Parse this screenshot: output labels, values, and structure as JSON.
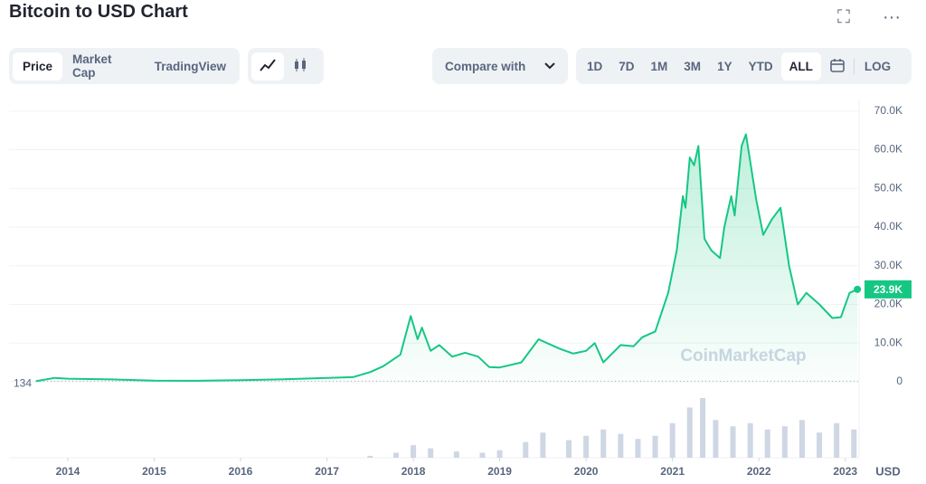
{
  "header": {
    "title": "Bitcoin to USD Chart"
  },
  "tabs": [
    "Price",
    "Market Cap",
    "TradingView"
  ],
  "compare": "Compare with",
  "ranges": [
    "1D",
    "7D",
    "1M",
    "3M",
    "1Y",
    "YTD",
    "ALL"
  ],
  "log_button": "LOG",
  "chart_data": {
    "type": "line",
    "watermark": "CoinMarketCap",
    "y_unit": "USD",
    "xlim": [
      2013.32,
      2023.16
    ],
    "xticks": [
      2014,
      2015,
      2016,
      2017,
      2018,
      2019,
      2020,
      2021,
      2022,
      2023
    ],
    "ylim": [
      0,
      73000
    ],
    "yticks": [
      0,
      {
        "value": 10000,
        "label": "10.0K"
      },
      {
        "value": 20000,
        "label": "20.0K"
      },
      {
        "value": 30000,
        "label": "30.0K"
      },
      {
        "value": 40000,
        "label": "40.0K"
      },
      {
        "value": 50000,
        "label": "50.0K"
      },
      {
        "value": 60000,
        "label": "60.0K"
      },
      {
        "value": 70000,
        "label": "70.0K"
      }
    ],
    "grid": true,
    "start_price": 134,
    "current_price": {
      "value": 23900,
      "label": "23.9K"
    },
    "series": [
      {
        "name": "Price",
        "color": "#16c784",
        "x": [
          2013.63,
          2013.85,
          2014.0,
          2014.5,
          2015.0,
          2015.5,
          2016.0,
          2016.5,
          2017.0,
          2017.3,
          2017.5,
          2017.65,
          2017.85,
          2017.97,
          2018.05,
          2018.1,
          2018.2,
          2018.3,
          2018.45,
          2018.6,
          2018.75,
          2018.88,
          2019.0,
          2019.25,
          2019.45,
          2019.55,
          2019.7,
          2019.85,
          2020.0,
          2020.1,
          2020.2,
          2020.4,
          2020.55,
          2020.65,
          2020.8,
          2020.95,
          2021.05,
          2021.12,
          2021.15,
          2021.2,
          2021.25,
          2021.3,
          2021.37,
          2021.45,
          2021.55,
          2021.6,
          2021.68,
          2021.72,
          2021.8,
          2021.85,
          2021.9,
          2021.97,
          2022.05,
          2022.15,
          2022.25,
          2022.35,
          2022.45,
          2022.55,
          2022.7,
          2022.85,
          2022.95,
          2023.05,
          2023.14
        ],
        "values": [
          134,
          1000,
          800,
          600,
          300,
          250,
          430,
          650,
          1000,
          1200,
          2500,
          4000,
          7000,
          17000,
          11000,
          14000,
          8000,
          9500,
          6500,
          7500,
          6500,
          3800,
          3700,
          5000,
          11000,
          10000,
          8500,
          7300,
          8000,
          10000,
          5000,
          9500,
          9200,
          11500,
          13000,
          23000,
          34000,
          48000,
          45000,
          58000,
          56000,
          61000,
          37000,
          34000,
          32000,
          40000,
          48000,
          43000,
          61000,
          64000,
          57000,
          47000,
          38000,
          42000,
          45000,
          30000,
          20000,
          23000,
          20000,
          16500,
          16700,
          23000,
          23900
        ]
      }
    ],
    "volume": {
      "x": [
        2017.5,
        2017.8,
        2018.0,
        2018.2,
        2018.5,
        2018.8,
        2019.0,
        2019.3,
        2019.5,
        2019.8,
        2020.0,
        2020.2,
        2020.4,
        2020.6,
        2020.8,
        2021.0,
        2021.2,
        2021.35,
        2021.5,
        2021.7,
        2021.9,
        2022.1,
        2022.3,
        2022.5,
        2022.7,
        2022.9,
        2023.1
      ],
      "values": [
        3,
        8,
        20,
        15,
        10,
        8,
        12,
        25,
        40,
        28,
        35,
        45,
        38,
        30,
        35,
        55,
        80,
        95,
        60,
        50,
        55,
        45,
        50,
        60,
        40,
        55,
        45
      ]
    }
  }
}
